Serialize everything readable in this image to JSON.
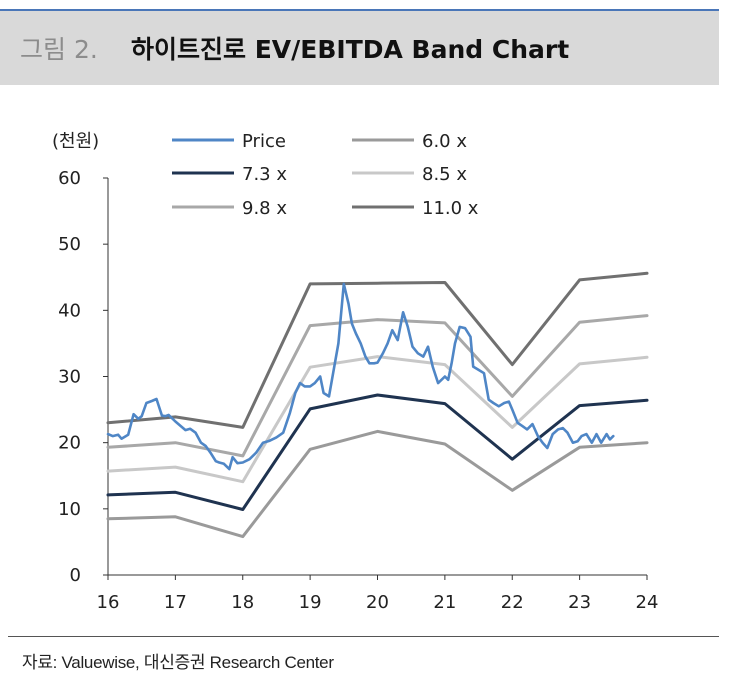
{
  "figure": {
    "label": "그림 2.",
    "title": "하이트진로 EV/EBITDA Band Chart",
    "source": "자료: Valuewise, 대신증권 Research Center"
  },
  "chart_data": {
    "type": "line",
    "unit_label": "(천원)",
    "ylim": [
      0,
      60
    ],
    "y_ticks": [
      "0",
      "10",
      "20",
      "30",
      "40",
      "50",
      "60"
    ],
    "xlim": [
      16,
      24
    ],
    "x_ticks": [
      "16",
      "17",
      "18",
      "19",
      "20",
      "21",
      "22",
      "23",
      "24"
    ],
    "grid": false,
    "legend_position": "top",
    "series": [
      {
        "name": "Price",
        "color": "#4f86c6",
        "x": [
          16.0,
          16.07,
          16.15,
          16.2,
          16.3,
          16.38,
          16.45,
          16.5,
          16.57,
          16.65,
          16.72,
          16.8,
          16.85,
          16.9,
          17.0,
          17.08,
          17.15,
          17.22,
          17.3,
          17.38,
          17.45,
          17.52,
          17.6,
          17.65,
          17.72,
          17.8,
          17.85,
          17.92,
          18.0,
          18.1,
          18.2,
          18.3,
          18.4,
          18.5,
          18.6,
          18.7,
          18.78,
          18.85,
          18.92,
          19.0,
          19.07,
          19.15,
          19.2,
          19.28,
          19.35,
          19.42,
          19.5,
          19.57,
          19.62,
          19.68,
          19.75,
          19.82,
          19.88,
          19.95,
          20.0,
          20.08,
          20.15,
          20.22,
          20.3,
          20.38,
          20.45,
          20.52,
          20.6,
          20.68,
          20.75,
          20.82,
          20.9,
          20.95,
          21.0,
          21.05,
          21.1,
          21.15,
          21.22,
          21.3,
          21.38,
          21.42,
          21.5,
          21.58,
          21.65,
          21.72,
          21.8,
          21.88,
          21.95,
          22.0,
          22.08,
          22.15,
          22.22,
          22.3,
          22.38,
          22.45,
          22.52,
          22.6,
          22.68,
          22.75,
          22.82,
          22.9,
          22.97,
          23.03,
          23.1,
          23.18,
          23.25,
          23.32,
          23.4,
          23.45,
          23.5
        ],
        "values": [
          21.3,
          21.0,
          21.2,
          20.6,
          21.2,
          24.3,
          23.6,
          24.0,
          26.0,
          26.3,
          26.6,
          24.1,
          24.0,
          24.2,
          23.2,
          22.5,
          21.9,
          22.1,
          21.5,
          20.0,
          19.5,
          18.5,
          17.2,
          17.0,
          16.8,
          16.0,
          17.8,
          16.9,
          17.0,
          17.5,
          18.5,
          20.0,
          20.3,
          20.8,
          21.5,
          24.5,
          27.5,
          29.0,
          28.5,
          28.5,
          29.0,
          30.0,
          27.5,
          27.0,
          31.0,
          35.0,
          44.0,
          41.0,
          38.0,
          36.5,
          35.0,
          33.0,
          32.0,
          32.0,
          32.1,
          33.5,
          35.0,
          37.0,
          35.5,
          39.7,
          37.5,
          34.5,
          33.5,
          33.0,
          34.5,
          31.5,
          29.0,
          29.5,
          30.0,
          29.5,
          32.0,
          35.0,
          37.5,
          37.3,
          36.0,
          31.5,
          31.0,
          30.5,
          26.5,
          26.0,
          25.5,
          26.0,
          26.2,
          25.0,
          23.0,
          22.5,
          22.0,
          22.8,
          21.0,
          20.0,
          19.2,
          21.3,
          22.0,
          22.2,
          21.5,
          20.0,
          20.2,
          21.0,
          21.3,
          20.0,
          21.3,
          20.0,
          21.3,
          20.5,
          21.0
        ]
      },
      {
        "name": "6.0 x",
        "color": "#9a9a9a",
        "x": [
          16.0,
          17.0,
          18.0,
          19.0,
          20.0,
          21.0,
          22.0,
          23.0,
          24.0
        ],
        "values": [
          8.5,
          8.8,
          5.8,
          19.0,
          21.7,
          19.8,
          12.8,
          19.3,
          20.0
        ]
      },
      {
        "name": "7.3 x",
        "color": "#1f3350",
        "x": [
          16.0,
          17.0,
          18.0,
          19.0,
          20.0,
          21.0,
          22.0,
          23.0,
          24.0
        ],
        "values": [
          12.1,
          12.5,
          9.9,
          25.1,
          27.2,
          25.9,
          17.5,
          25.6,
          26.4
        ]
      },
      {
        "name": "8.5 x",
        "color": "#c8c8c8",
        "x": [
          16.0,
          17.0,
          18.0,
          19.0,
          20.0,
          21.0,
          22.0,
          23.0,
          24.0
        ],
        "values": [
          15.7,
          16.3,
          14.1,
          31.4,
          33.0,
          31.8,
          22.3,
          31.9,
          32.9
        ]
      },
      {
        "name": "9.8 x",
        "color": "#a8a8a8",
        "x": [
          16.0,
          17.0,
          18.0,
          19.0,
          20.0,
          21.0,
          22.0,
          23.0,
          24.0
        ],
        "values": [
          19.3,
          20.0,
          18.0,
          37.7,
          38.6,
          38.1,
          27.0,
          38.2,
          39.2
        ]
      },
      {
        "name": "11.0 x",
        "color": "#707070",
        "x": [
          16.0,
          17.0,
          18.0,
          19.0,
          20.0,
          21.0,
          22.0,
          23.0,
          24.0
        ],
        "values": [
          23.0,
          23.9,
          22.3,
          44.0,
          44.1,
          44.2,
          31.8,
          44.6,
          45.6
        ]
      }
    ]
  }
}
